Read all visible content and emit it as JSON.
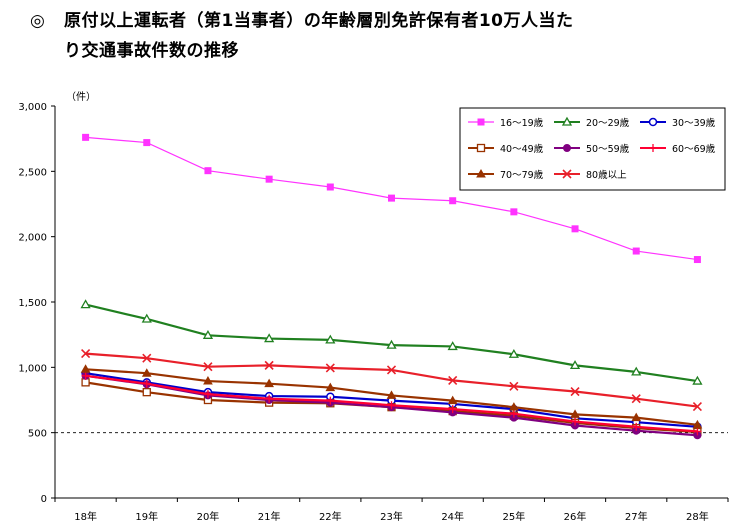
{
  "title": {
    "mark": "◎",
    "line1": "原付以上運転者（第1当事者）の年齢層別免許保有者10万人当た",
    "line2": "り交通事故件数の推移"
  },
  "chart_data": {
    "type": "line",
    "unit_label": "（件）",
    "categories": [
      "18年",
      "19年",
      "20年",
      "21年",
      "22年",
      "23年",
      "24年",
      "25年",
      "26年",
      "27年",
      "28年"
    ],
    "yticks": [
      "3,000",
      "2,500",
      "2,000",
      "1,500",
      "1,000",
      "500",
      "0"
    ],
    "ylim": [
      0,
      3000
    ],
    "reference_line": 500,
    "legend_position": "top-right",
    "series": [
      {
        "name": "16～19歳",
        "color": "#ff33ff",
        "marker": "square-filled",
        "values": [
          2760,
          2720,
          2505,
          2440,
          2380,
          2295,
          2275,
          2190,
          2060,
          1890,
          1825
        ]
      },
      {
        "name": "20～29歳",
        "color": "#208020",
        "marker": "triangle-open",
        "values": [
          1480,
          1370,
          1245,
          1220,
          1210,
          1170,
          1160,
          1100,
          1015,
          965,
          895
        ]
      },
      {
        "name": "30～39歳",
        "color": "#0000cc",
        "marker": "circle-open",
        "values": [
          955,
          885,
          810,
          780,
          775,
          745,
          720,
          680,
          610,
          580,
          545
        ]
      },
      {
        "name": "40～49歳",
        "color": "#993300",
        "marker": "square-open",
        "values": [
          885,
          810,
          750,
          730,
          725,
          695,
          665,
          630,
          575,
          535,
          505
        ]
      },
      {
        "name": "50～59歳",
        "color": "#800080",
        "marker": "circle-filled",
        "values": [
          935,
          870,
          785,
          750,
          730,
          695,
          655,
          615,
          555,
          515,
          480
        ]
      },
      {
        "name": "60～69歳",
        "color": "#ff0033",
        "marker": "plus",
        "values": [
          935,
          875,
          795,
          760,
          745,
          710,
          680,
          645,
          585,
          545,
          510
        ]
      },
      {
        "name": "70～79歳",
        "color": "#993300",
        "marker": "triangle-filled",
        "values": [
          985,
          955,
          895,
          875,
          845,
          785,
          745,
          695,
          640,
          615,
          560
        ]
      },
      {
        "name": "80歳以上",
        "color": "#e8202a",
        "marker": "x",
        "values": [
          1105,
          1070,
          1005,
          1015,
          995,
          980,
          900,
          855,
          815,
          760,
          700
        ]
      }
    ]
  }
}
